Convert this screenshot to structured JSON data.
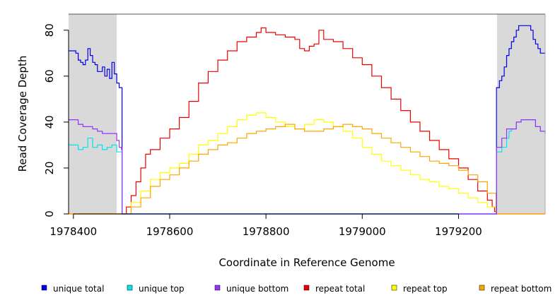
{
  "chart_data": {
    "type": "line",
    "title": "",
    "xlabel": "Coordinate in Reference Genome",
    "ylabel": "Read Coverage Depth",
    "xlim": [
      1978390,
      1979380
    ],
    "ylim": [
      0,
      87
    ],
    "x_ticks": [
      1978400,
      1978600,
      1978800,
      1979000,
      1979200
    ],
    "y_ticks": [
      0,
      20,
      40,
      60,
      80
    ],
    "shaded_regions": [
      {
        "x": [
          1978390,
          1978490
        ],
        "color": "#d9d9d9"
      },
      {
        "x": [
          1979280,
          1979380
        ],
        "color": "#d9d9d9"
      }
    ],
    "legend_position": "bottom",
    "series": [
      {
        "name": "unique total",
        "color": "#0000ee",
        "x": [
          1978390,
          1978400,
          1978405,
          1978410,
          1978415,
          1978420,
          1978425,
          1978430,
          1978435,
          1978440,
          1978445,
          1978450,
          1978455,
          1978460,
          1978465,
          1978470,
          1978475,
          1978480,
          1978485,
          1978490,
          1978495,
          1978500,
          1978501,
          1979278,
          1979279,
          1979285,
          1979290,
          1979295,
          1979300,
          1979305,
          1979310,
          1979315,
          1979320,
          1979325,
          1979330,
          1979335,
          1979340,
          1979345,
          1979350,
          1979355,
          1979360,
          1979365,
          1979370,
          1979380
        ],
        "y": [
          71,
          71,
          70,
          67,
          66,
          65,
          67,
          72,
          69,
          66,
          65,
          62,
          62,
          64,
          60,
          63,
          59,
          66,
          61,
          57,
          55,
          55,
          0,
          0,
          55,
          58,
          60,
          64,
          69,
          72,
          75,
          77,
          80,
          82,
          82,
          82,
          82,
          82,
          80,
          76,
          74,
          72,
          70,
          70
        ]
      },
      {
        "name": "unique top",
        "color": "#00e5ee",
        "x": [
          1978390,
          1978400,
          1978410,
          1978420,
          1978430,
          1978440,
          1978450,
          1978460,
          1978470,
          1978480,
          1978490,
          1978495,
          1978500,
          1978501,
          1979278,
          1979279,
          1979290,
          1979300,
          1979305,
          1979310,
          1979320,
          1979330,
          1979340,
          1979350,
          1979360,
          1979370,
          1979380
        ],
        "y": [
          30,
          30,
          28,
          29,
          33,
          29,
          30,
          28,
          29,
          30,
          27,
          27,
          27,
          0,
          0,
          27,
          29,
          33,
          36,
          37,
          40,
          41,
          41,
          41,
          38,
          36,
          35
        ]
      },
      {
        "name": "unique bottom",
        "color": "#9b30ff",
        "x": [
          1978390,
          1978400,
          1978410,
          1978420,
          1978430,
          1978440,
          1978450,
          1978460,
          1978470,
          1978480,
          1978490,
          1978495,
          1978500,
          1978501,
          1979278,
          1979279,
          1979290,
          1979300,
          1979310,
          1979320,
          1979330,
          1979340,
          1979350,
          1979360,
          1979370,
          1979380
        ],
        "y": [
          41,
          41,
          39,
          38,
          38,
          37,
          36,
          35,
          35,
          35,
          32,
          29,
          28,
          0,
          0,
          29,
          33,
          37,
          37,
          40,
          41,
          41,
          41,
          38,
          36,
          35
        ]
      },
      {
        "name": "repeat total",
        "color": "#ee0000",
        "x": [
          1978390,
          1978500,
          1978510,
          1978520,
          1978530,
          1978540,
          1978550,
          1978560,
          1978580,
          1978600,
          1978620,
          1978640,
          1978660,
          1978680,
          1978700,
          1978720,
          1978740,
          1978760,
          1978780,
          1978790,
          1978800,
          1978820,
          1978840,
          1978860,
          1978870,
          1978880,
          1978890,
          1978900,
          1978910,
          1978920,
          1978940,
          1978960,
          1978980,
          1979000,
          1979020,
          1979040,
          1979060,
          1979080,
          1979100,
          1979120,
          1979140,
          1979160,
          1979180,
          1979200,
          1979220,
          1979240,
          1979260,
          1979270,
          1979275,
          1979278,
          1979380
        ],
        "y": [
          0,
          0,
          3,
          8,
          14,
          20,
          26,
          28,
          33,
          37,
          42,
          49,
          57,
          62,
          67,
          71,
          75,
          77,
          79,
          81,
          79,
          78,
          77,
          76,
          72,
          71,
          73,
          74,
          80,
          76,
          75,
          72,
          68,
          65,
          60,
          55,
          50,
          45,
          40,
          36,
          32,
          28,
          24,
          20,
          15,
          10,
          6,
          3,
          1,
          0,
          0
        ]
      },
      {
        "name": "repeat top",
        "color": "#ffff00",
        "x": [
          1978390,
          1978500,
          1978520,
          1978540,
          1978560,
          1978580,
          1978600,
          1978620,
          1978640,
          1978660,
          1978680,
          1978700,
          1978720,
          1978740,
          1978760,
          1978780,
          1978800,
          1978820,
          1978840,
          1978860,
          1978880,
          1978900,
          1978920,
          1978940,
          1978960,
          1978980,
          1979000,
          1979020,
          1979040,
          1979060,
          1979080,
          1979100,
          1979120,
          1979140,
          1979160,
          1979180,
          1979200,
          1979220,
          1979240,
          1979260,
          1979278,
          1979380
        ],
        "y": [
          0,
          0,
          5,
          10,
          15,
          18,
          20,
          22,
          26,
          30,
          32,
          35,
          38,
          41,
          43,
          44,
          42,
          40,
          38,
          37,
          39,
          41,
          40,
          38,
          36,
          33,
          29,
          26,
          23,
          21,
          19,
          17,
          15,
          14,
          12,
          11,
          9,
          7,
          5,
          3,
          0,
          0
        ]
      },
      {
        "name": "repeat bottom",
        "color": "#ffa500",
        "x": [
          1978390,
          1978500,
          1978520,
          1978540,
          1978560,
          1978580,
          1978600,
          1978620,
          1978640,
          1978660,
          1978680,
          1978700,
          1978720,
          1978740,
          1978760,
          1978780,
          1978800,
          1978820,
          1978840,
          1978860,
          1978880,
          1978900,
          1978920,
          1978940,
          1978960,
          1978980,
          1979000,
          1979020,
          1979040,
          1979060,
          1979080,
          1979100,
          1979120,
          1979140,
          1979160,
          1979180,
          1979200,
          1979220,
          1979240,
          1979260,
          1979278,
          1979380
        ],
        "y": [
          0,
          0,
          3,
          7,
          12,
          15,
          17,
          20,
          23,
          26,
          28,
          30,
          31,
          33,
          35,
          36,
          37,
          38,
          39,
          37,
          36,
          36,
          37,
          38,
          39,
          38,
          37,
          35,
          33,
          31,
          29,
          27,
          25,
          23,
          22,
          21,
          19,
          17,
          14,
          9,
          0,
          0
        ]
      }
    ]
  }
}
